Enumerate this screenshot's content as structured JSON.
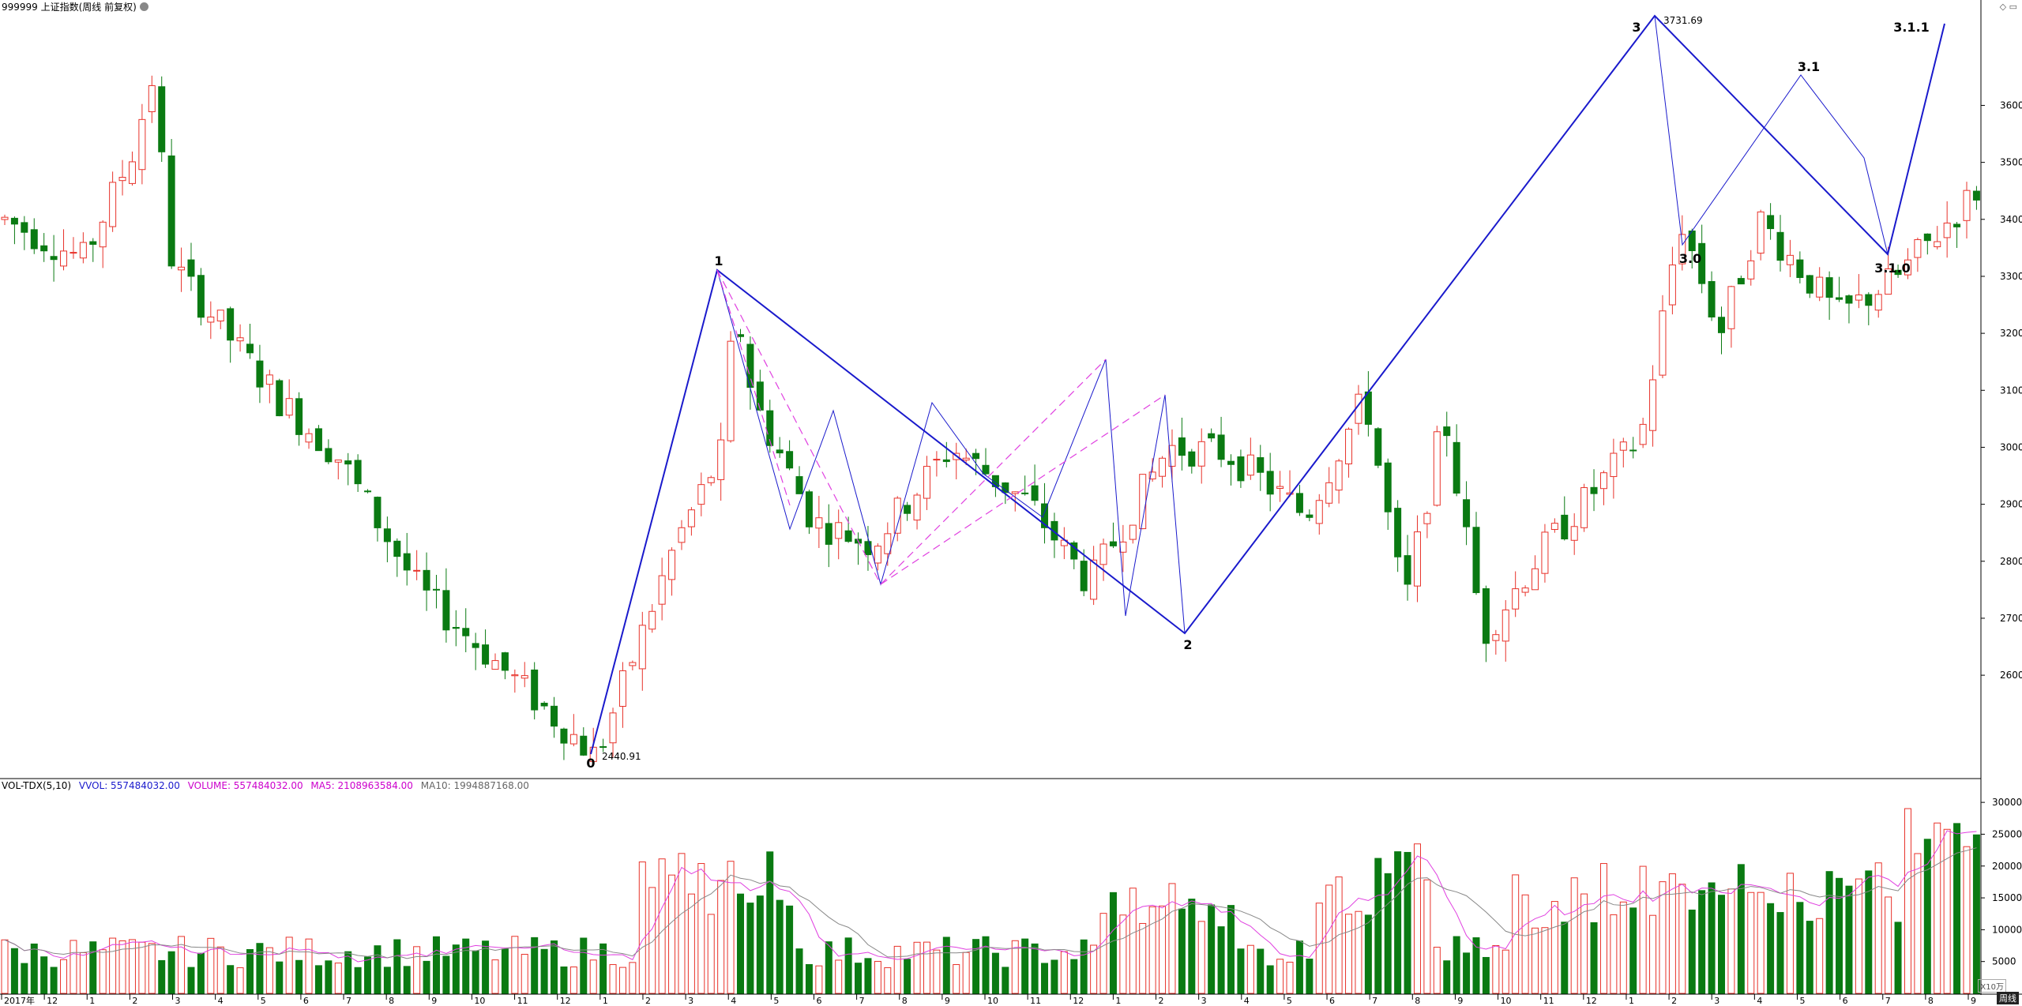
{
  "header": {
    "title": "999999 上证指数(周线 前复权)"
  },
  "volume_header": {
    "indicator": "VOL-TDX(5,10)",
    "vvol": "VVOL: 557484032.00",
    "volume": "VOLUME: 557484032.00",
    "ma5": "MA5: 2108963584.00",
    "ma10": "MA10: 1994887168.00"
  },
  "corner": {
    "period": "周线",
    "zoom": "X10万"
  },
  "colors": {
    "up": "#e8332b",
    "down": "#0a7a12",
    "wave": "#1a1acc",
    "dashed": "#e040e0",
    "ma5": "#e040e0",
    "ma10": "#888888",
    "axis": "#000000"
  },
  "chart_data": {
    "type": "candlestick",
    "price_axis": {
      "ticks": [
        2600,
        2700,
        2800,
        2900,
        3000,
        3100,
        3200,
        3300,
        3400,
        3500,
        3600
      ],
      "range": [
        2420,
        3760
      ]
    },
    "volume_axis": {
      "ticks": [
        5000,
        10000,
        15000,
        20000,
        25000,
        30000
      ],
      "range": [
        0,
        32000
      ],
      "unit": "X10万"
    },
    "x_labels": [
      "2017年",
      "12",
      "1",
      "2",
      "3",
      "4",
      "5",
      "6",
      "7",
      "8",
      "9",
      "10",
      "11",
      "12",
      "1",
      "2",
      "3",
      "4",
      "5",
      "6",
      "7",
      "8",
      "9",
      "10",
      "11",
      "12",
      "1",
      "2",
      "3",
      "4",
      "5",
      "6",
      "7",
      "8",
      "9",
      "10",
      "11",
      "12",
      "1",
      "2",
      "3",
      "4",
      "5",
      "6",
      "7",
      "8",
      "9"
    ],
    "annotations": {
      "high_label": "3731.69",
      "low_label": "2440.91",
      "wave_labels": [
        "0",
        "1",
        "2",
        "3",
        "3.0",
        "3.1",
        "3.1.0",
        "3.1.1"
      ]
    }
  }
}
